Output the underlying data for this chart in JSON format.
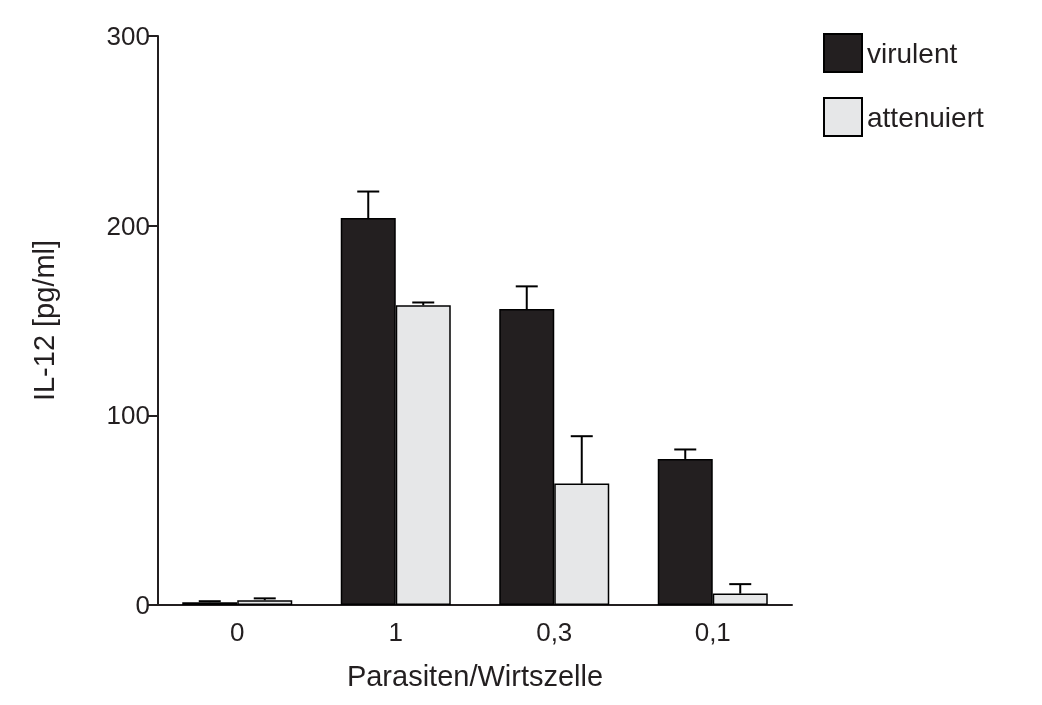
{
  "chart_data": {
    "type": "bar",
    "xlabel": "Parasiten/Wirtszelle",
    "ylabel": "IL-12 [pg/ml]",
    "categories": [
      "0",
      "1",
      "0,3",
      "0,1"
    ],
    "series": [
      {
        "name": "virulent",
        "color": "#231f20",
        "values": [
          1.5,
          204,
          156,
          77
        ],
        "errors": [
          [
            1.5,
            2
          ],
          [
            204,
            218
          ],
          [
            156,
            168
          ],
          [
            77,
            82
          ]
        ]
      },
      {
        "name": "attenuiert",
        "color": "#e6e7e8",
        "values": [
          2.5,
          158,
          64,
          6
        ],
        "errors": [
          [
            2.5,
            3.5
          ],
          [
            158,
            159.5
          ],
          [
            64,
            89
          ],
          [
            6,
            11
          ]
        ]
      }
    ],
    "ylim": [
      0,
      300
    ],
    "yticks": [
      0,
      100,
      200,
      300
    ],
    "grid": false,
    "legend": "top right"
  }
}
